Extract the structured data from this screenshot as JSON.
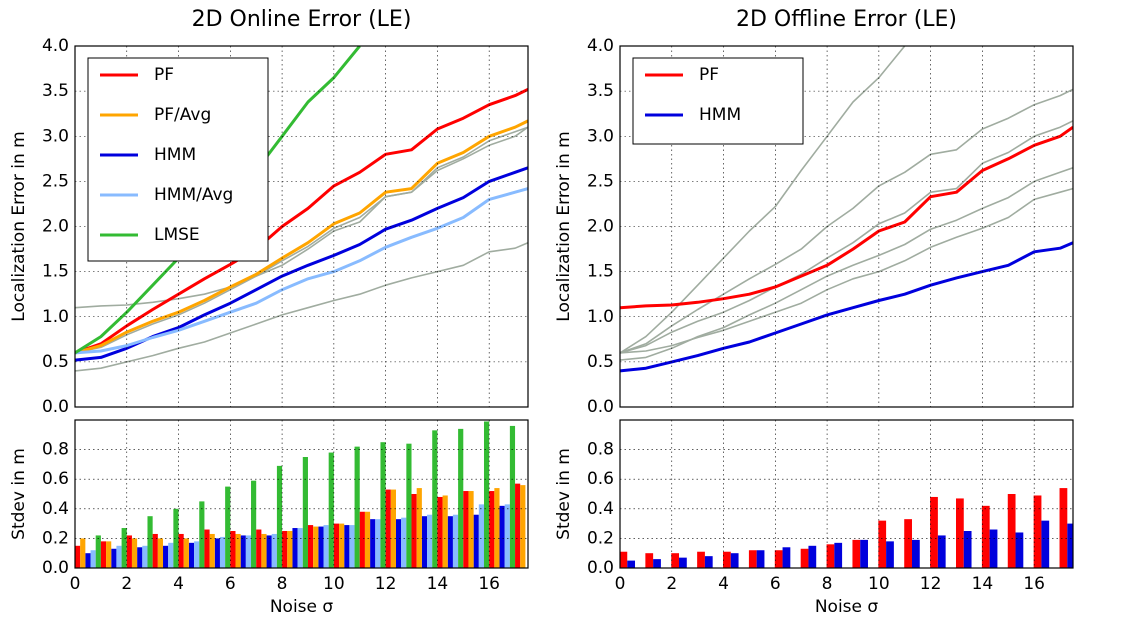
{
  "chart_data": [
    {
      "type": "line",
      "title": "2D Online Error (LE)",
      "ylabel": "Localization Error in m",
      "x": [
        0,
        1,
        2,
        3,
        4,
        5,
        6,
        7,
        8,
        9,
        10,
        11,
        12,
        13,
        14,
        15,
        16,
        17,
        17.5
      ],
      "series": [
        {
          "name": "PF",
          "color": "#ff0000",
          "values": [
            0.6,
            0.7,
            0.9,
            1.08,
            1.25,
            1.42,
            1.58,
            1.75,
            2.0,
            2.2,
            2.45,
            2.6,
            2.8,
            2.85,
            3.08,
            3.2,
            3.35,
            3.45,
            3.52
          ]
        },
        {
          "name": "PF/Avg",
          "color": "#ffa500",
          "values": [
            0.6,
            0.68,
            0.83,
            0.95,
            1.05,
            1.18,
            1.33,
            1.47,
            1.65,
            1.82,
            2.03,
            2.15,
            2.38,
            2.42,
            2.7,
            2.82,
            3.0,
            3.1,
            3.17
          ]
        },
        {
          "name": "HMM",
          "color": "#0000dd",
          "values": [
            0.52,
            0.55,
            0.65,
            0.78,
            0.88,
            1.02,
            1.15,
            1.3,
            1.45,
            1.57,
            1.68,
            1.8,
            1.97,
            2.07,
            2.2,
            2.32,
            2.5,
            2.6,
            2.65
          ]
        },
        {
          "name": "HMM/Avg",
          "color": "#88bbff",
          "values": [
            0.6,
            0.62,
            0.68,
            0.77,
            0.85,
            0.95,
            1.05,
            1.15,
            1.3,
            1.42,
            1.5,
            1.62,
            1.77,
            1.88,
            1.98,
            2.1,
            2.3,
            2.38,
            2.42
          ]
        },
        {
          "name": "LMSE",
          "color": "#33bb33",
          "values": [
            0.6,
            0.78,
            1.05,
            1.35,
            1.65,
            1.95,
            2.22,
            2.62,
            3.0,
            3.38,
            3.65,
            4.0,
            null,
            null,
            null,
            null,
            null,
            null,
            null
          ]
        }
      ],
      "reference_series": [
        {
          "color": "#a0aca0",
          "values": [
            1.1,
            1.12,
            1.13,
            1.16,
            1.2,
            1.25,
            1.33,
            1.45,
            1.57,
            1.75,
            1.95,
            2.05,
            2.33,
            2.38,
            2.62,
            2.75,
            2.9,
            3.0,
            3.1
          ]
        },
        {
          "color": "#a0aca0",
          "values": [
            0.4,
            0.43,
            0.5,
            0.57,
            0.65,
            0.72,
            0.82,
            0.92,
            1.02,
            1.1,
            1.18,
            1.25,
            1.35,
            1.43,
            1.5,
            1.57,
            1.72,
            1.76,
            1.82
          ]
        },
        {
          "color": "#a0aca0",
          "values": [
            0.6,
            0.66,
            0.8,
            0.92,
            1.02,
            1.15,
            1.3,
            1.45,
            1.62,
            1.78,
            1.98,
            2.1,
            2.33,
            2.38,
            2.65,
            2.77,
            2.95,
            3.05,
            3.1
          ]
        }
      ],
      "xlim": [
        0,
        17.5
      ],
      "ylim": [
        0,
        4
      ],
      "xticks": [
        0,
        2,
        4,
        6,
        8,
        10,
        12,
        14,
        16
      ],
      "xtick_labels": false,
      "yticks": [
        {
          "value": 0,
          "label": "0.0"
        },
        0.5,
        {
          "value": 1,
          "label": "1.0"
        },
        1.5,
        {
          "value": 2,
          "label": "2.0"
        },
        2.5,
        {
          "value": 3,
          "label": "3.0"
        },
        3.5,
        {
          "value": 4,
          "label": "4.0"
        }
      ],
      "grid": true,
      "legend": "upper left"
    },
    {
      "type": "bar",
      "ylabel": "Stdev in m",
      "xlabel": "Noise σ",
      "x": [
        0,
        1,
        2,
        3,
        4,
        5,
        6,
        7,
        8,
        9,
        10,
        11,
        12,
        13,
        14,
        15,
        16,
        17
      ],
      "series": [
        {
          "color": "#0000dd",
          "values": [
            0.12,
            0.1,
            0.13,
            0.14,
            0.15,
            0.17,
            0.2,
            0.22,
            0.22,
            0.27,
            0.28,
            0.29,
            0.33,
            0.33,
            0.35,
            0.35,
            0.36,
            0.42
          ]
        },
        {
          "color": "#88bbff",
          "values": [
            0.14,
            0.12,
            0.15,
            0.15,
            0.17,
            0.18,
            0.21,
            0.22,
            0.23,
            0.27,
            0.29,
            0.29,
            0.33,
            0.34,
            0.36,
            0.36,
            0.43,
            0.43
          ]
        },
        {
          "color": "#33bb33",
          "values": [
            0.18,
            0.22,
            0.27,
            0.35,
            0.4,
            0.45,
            0.55,
            0.59,
            0.69,
            0.75,
            0.78,
            0.82,
            0.85,
            0.84,
            0.93,
            0.94,
            0.99,
            0.96
          ]
        },
        {
          "color": "#ff0000",
          "values": [
            0.15,
            0.18,
            0.22,
            0.23,
            0.23,
            0.26,
            0.25,
            0.26,
            0.25,
            0.29,
            0.3,
            0.38,
            0.53,
            0.5,
            0.48,
            0.52,
            0.52,
            0.57
          ]
        },
        {
          "color": "#ffa500",
          "values": [
            0.2,
            0.18,
            0.2,
            0.2,
            0.2,
            0.23,
            0.23,
            0.23,
            0.25,
            0.28,
            0.3,
            0.38,
            0.53,
            0.54,
            0.49,
            0.52,
            0.54,
            0.56
          ]
        }
      ],
      "xlim": [
        0,
        17.5
      ],
      "ylim": [
        0,
        1
      ],
      "xticks": [
        0,
        2,
        4,
        6,
        8,
        10,
        12,
        14,
        16
      ],
      "yticks": [
        {
          "value": 0,
          "label": "0.0"
        },
        0.2,
        0.4,
        0.6,
        0.8
      ],
      "grid": true
    },
    {
      "type": "line",
      "title": "2D Offline Error (LE)",
      "ylabel": "Localization Error in m",
      "x": [
        0,
        1,
        2,
        3,
        4,
        5,
        6,
        7,
        8,
        9,
        10,
        11,
        12,
        13,
        14,
        15,
        16,
        17,
        17.5
      ],
      "series": [
        {
          "name": "PF",
          "color": "#ff0000",
          "values": [
            1.1,
            1.12,
            1.13,
            1.16,
            1.2,
            1.25,
            1.33,
            1.45,
            1.57,
            1.75,
            1.95,
            2.05,
            2.33,
            2.38,
            2.62,
            2.75,
            2.9,
            3.0,
            3.1
          ]
        },
        {
          "name": "HMM",
          "color": "#0000dd",
          "values": [
            0.4,
            0.43,
            0.5,
            0.57,
            0.65,
            0.72,
            0.82,
            0.92,
            1.02,
            1.1,
            1.18,
            1.25,
            1.35,
            1.43,
            1.5,
            1.57,
            1.72,
            1.76,
            1.82
          ]
        }
      ],
      "reference_series": [
        {
          "color": "#a0aca0",
          "values": [
            0.6,
            0.7,
            0.9,
            1.08,
            1.25,
            1.42,
            1.58,
            1.75,
            2.0,
            2.2,
            2.45,
            2.6,
            2.8,
            2.85,
            3.08,
            3.2,
            3.35,
            3.45,
            3.52
          ]
        },
        {
          "color": "#a0aca0",
          "values": [
            0.6,
            0.68,
            0.83,
            0.95,
            1.05,
            1.18,
            1.33,
            1.47,
            1.65,
            1.82,
            2.03,
            2.15,
            2.38,
            2.42,
            2.7,
            2.82,
            3.0,
            3.1,
            3.17
          ]
        },
        {
          "color": "#a0aca0",
          "values": [
            0.52,
            0.55,
            0.65,
            0.78,
            0.88,
            1.02,
            1.15,
            1.3,
            1.45,
            1.57,
            1.68,
            1.8,
            1.97,
            2.07,
            2.2,
            2.32,
            2.5,
            2.6,
            2.65
          ]
        },
        {
          "color": "#a0aca0",
          "values": [
            0.6,
            0.62,
            0.68,
            0.77,
            0.85,
            0.95,
            1.05,
            1.15,
            1.3,
            1.42,
            1.5,
            1.62,
            1.77,
            1.88,
            1.98,
            2.1,
            2.3,
            2.38,
            2.42
          ]
        },
        {
          "color": "#a0aca0",
          "values": [
            0.6,
            0.78,
            1.05,
            1.35,
            1.65,
            1.95,
            2.22,
            2.62,
            3.0,
            3.38,
            3.65,
            4.0,
            null,
            null,
            null,
            null,
            null,
            null,
            null
          ]
        }
      ],
      "xlim": [
        0,
        17.5
      ],
      "ylim": [
        0,
        4
      ],
      "xticks": [
        0,
        2,
        4,
        6,
        8,
        10,
        12,
        14,
        16
      ],
      "xtick_labels": false,
      "yticks": [
        {
          "value": 0,
          "label": "0.0"
        },
        0.5,
        {
          "value": 1,
          "label": "1.0"
        },
        1.5,
        {
          "value": 2,
          "label": "2.0"
        },
        2.5,
        {
          "value": 3,
          "label": "3.0"
        },
        3.5,
        {
          "value": 4,
          "label": "4.0"
        }
      ],
      "grid": true,
      "legend": "upper left"
    },
    {
      "type": "bar",
      "ylabel": "Stdev in m",
      "xlabel": "Noise σ",
      "x": [
        0,
        1,
        2,
        3,
        4,
        5,
        6,
        7,
        8,
        9,
        10,
        11,
        12,
        13,
        14,
        15,
        16,
        17
      ],
      "series": [
        {
          "color": "#ff0000",
          "values": [
            0.11,
            0.1,
            0.1,
            0.11,
            0.11,
            0.12,
            0.12,
            0.13,
            0.16,
            0.19,
            0.32,
            0.33,
            0.48,
            0.47,
            0.42,
            0.5,
            0.49,
            0.54
          ]
        },
        {
          "color": "#0000dd",
          "values": [
            0.05,
            0.06,
            0.07,
            0.08,
            0.1,
            0.12,
            0.14,
            0.15,
            0.17,
            0.19,
            0.18,
            0.19,
            0.22,
            0.25,
            0.26,
            0.24,
            0.32,
            0.3
          ]
        }
      ],
      "xlim": [
        0,
        17.5
      ],
      "ylim": [
        0,
        1
      ],
      "xticks": [
        0,
        2,
        4,
        6,
        8,
        10,
        12,
        14,
        16
      ],
      "yticks": [
        {
          "value": 0,
          "label": "0.0"
        },
        0.2,
        0.4,
        0.6,
        0.8
      ],
      "grid": true
    }
  ]
}
